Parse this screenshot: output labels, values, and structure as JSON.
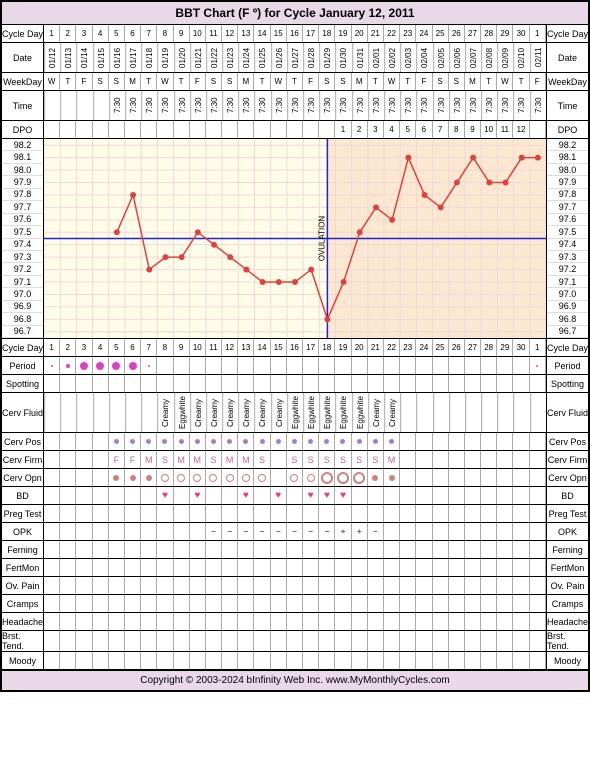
{
  "title": "BBT Chart (F º) for Cycle January 12, 2011",
  "footer": "Copyright © 2003-2024 bInfinity Web Inc.    www.MyMonthlyCycles.com",
  "columns": 31,
  "labels": {
    "cycleDay": "Cycle Day",
    "date": "Date",
    "weekday": "WeekDay",
    "time": "Time",
    "dpo": "DPO",
    "period": "Period",
    "spotting": "Spotting",
    "cervFluid": "Cerv Fluid",
    "cervPos": "Cerv Pos",
    "cervFirm": "Cerv Firm",
    "cervOpn": "Cerv Opn",
    "bd": "BD",
    "pregTest": "Preg Test",
    "opk": "OPK",
    "ferning": "Ferning",
    "fertMon": "FertMon",
    "ovPain": "Ov. Pain",
    "cramps": "Cramps",
    "headache": "Headache",
    "brstTend": "Brst. Tend.",
    "moody": "Moody"
  },
  "cycleDays1": [
    1,
    2,
    3,
    4,
    5,
    6,
    7,
    8,
    9,
    10,
    11,
    12,
    13,
    14,
    15,
    16,
    17,
    18,
    19,
    20,
    21,
    22,
    23,
    24,
    25,
    26,
    27,
    28,
    29,
    30,
    1
  ],
  "cycleDays2": [
    1,
    2,
    3,
    4,
    5,
    6,
    7,
    8,
    9,
    10,
    11,
    12,
    13,
    14,
    15,
    16,
    17,
    18,
    19,
    20,
    21,
    22,
    23,
    24,
    25,
    26,
    27,
    28,
    29,
    30,
    1
  ],
  "dates": [
    "01/12",
    "01/13",
    "01/14",
    "01/15",
    "01/16",
    "01/17",
    "01/18",
    "01/19",
    "01/20",
    "01/21",
    "01/22",
    "01/23",
    "01/24",
    "01/25",
    "01/26",
    "01/27",
    "01/28",
    "01/29",
    "01/30",
    "01/31",
    "02/01",
    "02/02",
    "02/03",
    "02/04",
    "02/05",
    "02/06",
    "02/07",
    "02/08",
    "02/09",
    "02/10",
    "02/11"
  ],
  "weekdays": [
    "W",
    "T",
    "F",
    "S",
    "S",
    "M",
    "T",
    "W",
    "T",
    "F",
    "S",
    "S",
    "M",
    "T",
    "W",
    "T",
    "F",
    "S",
    "S",
    "M",
    "T",
    "W",
    "T",
    "F",
    "S",
    "S",
    "M",
    "T",
    "W",
    "T",
    "F"
  ],
  "times": [
    "",
    "",
    "",
    "",
    "7:30",
    "7:30",
    "7:30",
    "7:30",
    "7:30",
    "7:30",
    "7:30",
    "7:30",
    "7:30",
    "7:30",
    "7:30",
    "7:30",
    "7:30",
    "7:30",
    "7:30",
    "7:30",
    "7:30",
    "7:30",
    "7:30",
    "7:30",
    "7:30",
    "7:30",
    "7:30",
    "7:30",
    "7:30",
    "7:30",
    "7:30"
  ],
  "dpo": [
    "",
    "",
    "",
    "",
    "",
    "",
    "",
    "",
    "",
    "",
    "",
    "",
    "",
    "",
    "",
    "",
    "",
    "",
    "1",
    "2",
    "3",
    "4",
    "5",
    "6",
    "7",
    "8",
    "9",
    "10",
    "11",
    "12",
    ""
  ],
  "ovulationDay": 18,
  "coverline": 97.45,
  "chart": {
    "yTicks": [
      98.2,
      98.1,
      98.0,
      97.9,
      97.8,
      97.7,
      97.6,
      97.5,
      97.4,
      97.3,
      97.2,
      97.1,
      97.0,
      96.9,
      96.8,
      96.7
    ],
    "ymin": 96.65,
    "ymax": 98.25,
    "lutealShadeStart": 18,
    "bgPre": "#fffde8",
    "bgPost": "#fce8d0",
    "gridColor": "#f0d8d8",
    "lineColor": "#e04040",
    "markerColor": "#e04040",
    "coverlineColor": "#2020d0",
    "ovLineColor": "#2020d0",
    "temps": [
      null,
      null,
      null,
      null,
      97.5,
      97.8,
      97.2,
      97.3,
      97.3,
      97.5,
      97.4,
      97.3,
      97.2,
      97.1,
      97.1,
      97.1,
      97.2,
      96.8,
      97.1,
      97.5,
      97.7,
      97.6,
      98.1,
      97.8,
      97.7,
      97.9,
      98.1,
      97.9,
      97.9,
      98.1,
      98.1
    ]
  },
  "period": [
    "tiny",
    "small",
    "dot",
    "dot",
    "dot",
    "dot",
    "tiny",
    "",
    "",
    "",
    "",
    "",
    "",
    "",
    "",
    "",
    "",
    "",
    "",
    "",
    "",
    "",
    "",
    "",
    "",
    "",
    "",
    "",
    "",
    "",
    "tiny"
  ],
  "cervFluid": [
    "",
    "",
    "",
    "",
    "",
    "",
    "",
    "Creamy",
    "Eggwhite",
    "Creamy",
    "Creamy",
    "Creamy",
    "Creamy",
    "Creamy",
    "Creamy",
    "Eggwhite",
    "Eggwhite",
    "Eggwhite",
    "Eggwhite",
    "Eggwhite",
    "Creamy",
    "Creamy",
    "",
    "",
    "",
    "",
    "",
    "",
    "",
    "",
    ""
  ],
  "cervPos": [
    "",
    "",
    "",
    "",
    "d",
    "d",
    "d",
    "d",
    "d",
    "d",
    "d",
    "d",
    "d",
    "d",
    "d",
    "d",
    "d",
    "d",
    "d",
    "d",
    "d",
    "d",
    "",
    "",
    "",
    "",
    "",
    "",
    "",
    "",
    ""
  ],
  "cervFirm": [
    "",
    "",
    "",
    "",
    "F",
    "F",
    "M",
    "S",
    "M",
    "M",
    "S",
    "M",
    "M",
    "S",
    "",
    "S",
    "S",
    "S",
    "S",
    "S",
    "S",
    "M",
    "",
    "",
    "",
    "",
    "",
    "",
    "",
    "",
    ""
  ],
  "cervFirmColor": "#d06090",
  "cervOpn": [
    "",
    "",
    "",
    "",
    "f",
    "f",
    "f",
    "o",
    "o",
    "o",
    "o",
    "o",
    "o",
    "o",
    "",
    "o",
    "o",
    "O",
    "O",
    "O",
    "f",
    "f",
    "",
    "",
    "",
    "",
    "",
    "",
    "",
    "",
    ""
  ],
  "bd": [
    "",
    "",
    "",
    "",
    "",
    "",
    "",
    "h",
    "",
    "h",
    "",
    "",
    "h",
    "",
    "h",
    "",
    "h",
    "h",
    "h",
    "",
    "",
    "",
    "",
    "",
    "",
    "",
    "",
    "",
    "",
    "",
    ""
  ],
  "opk": [
    "",
    "",
    "",
    "",
    "",
    "",
    "",
    "",
    "",
    "",
    "n",
    "n",
    "n",
    "n",
    "n",
    "n",
    "n",
    "n",
    "p",
    "p",
    "n",
    "",
    "",
    "",
    "",
    "",
    "",
    "",
    "",
    "",
    ""
  ]
}
